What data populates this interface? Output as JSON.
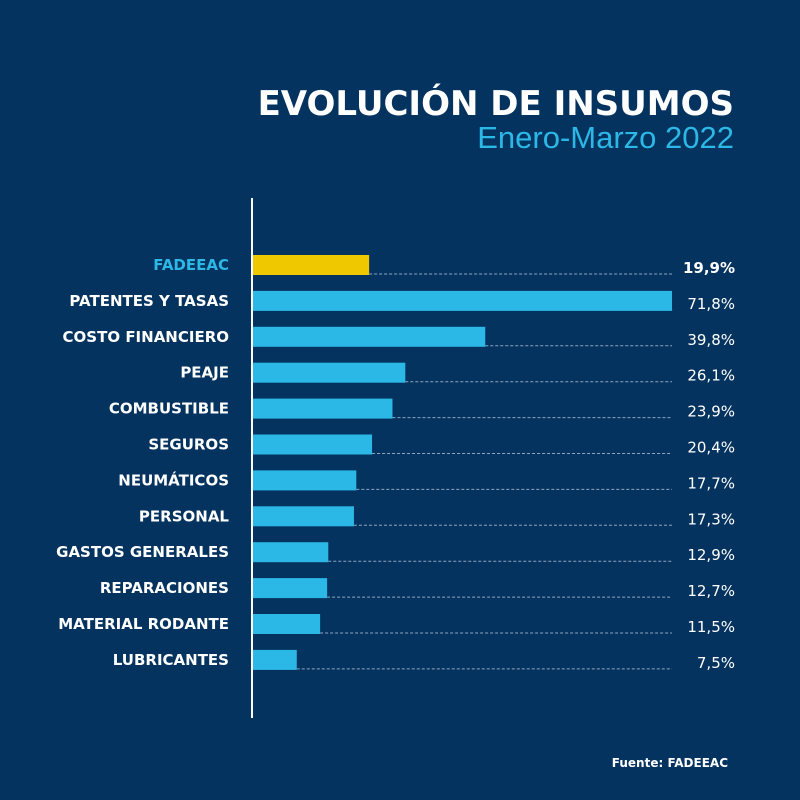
{
  "title": "EVOLUCIÓN DE INSUMOS",
  "subtitle": "Enero-Marzo 2022",
  "source": "Fuente: FADEEAC",
  "colors": {
    "background": "#05335f",
    "highlight": "#f0c800",
    "bar": "#2bb8e6",
    "highlight_label": "#2bb8e6"
  },
  "chart_data": {
    "type": "bar",
    "orientation": "horizontal",
    "categories": [
      "FADEEAC",
      "PATENTES Y TASAS",
      "COSTO FINANCIERO",
      "PEAJE",
      "COMBUSTIBLE",
      "SEGUROS",
      "NEUMÁTICOS",
      "PERSONAL",
      "GASTOS GENERALES",
      "REPARACIONES",
      "MATERIAL RODANTE",
      "LUBRICANTES"
    ],
    "values": [
      19.9,
      71.8,
      39.8,
      26.1,
      23.9,
      20.4,
      17.7,
      17.3,
      12.9,
      12.7,
      11.5,
      7.5
    ],
    "labels": [
      "19,9%",
      "71,8%",
      "39,8%",
      "26,1%",
      "23,9%",
      "20,4%",
      "17,7%",
      "17,3%",
      "12,9%",
      "12,7%",
      "11,5%",
      "7,5%"
    ],
    "highlight_category": "FADEEAC",
    "unit": "%",
    "grid": false
  }
}
